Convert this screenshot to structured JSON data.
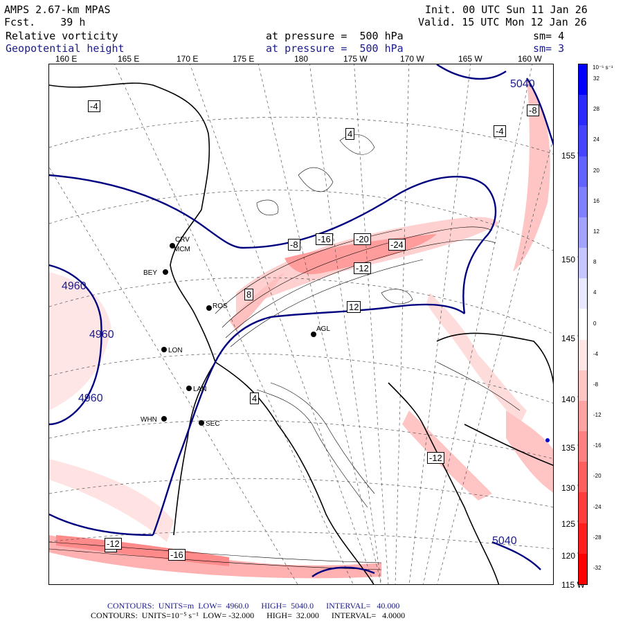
{
  "header": {
    "model": "AMPS 2.67-km MPAS",
    "forecast": "Fcst.    39 h",
    "init": "Init. 00 UTC Sun 11 Jan 26",
    "valid": "Valid. 15 UTC Mon 12 Jan 26",
    "field1": "Relative vorticity",
    "field1_level": "at pressure =  500 hPa",
    "field1_sm": "sm= 4",
    "field2": "Geopotential height",
    "field2_level": "at pressure =  500 hPa",
    "field2_sm": "sm= 3"
  },
  "longitude_labels": [
    "160 E",
    "165 E",
    "170 E",
    "175 E",
    "180",
    "175 W",
    "170 W",
    "165 W",
    "160 W"
  ],
  "latitude_labels": [
    "155 W",
    "150 W",
    "145 W",
    "140 W",
    "135 W",
    "130 W",
    "125 W",
    "120 W",
    "115 W"
  ],
  "stations": [
    "CRV",
    "MCM",
    "ROS",
    "BEY",
    "LON",
    "LAN",
    "WHN",
    "SEC",
    "AGL"
  ],
  "height_contour_labels": [
    "4960",
    "4960",
    "4960",
    "5040",
    "5040"
  ],
  "vorticity_labels": [
    "-4",
    "-8",
    "-12",
    "-16",
    "-20",
    "-24",
    "4",
    "8",
    "12",
    "-4",
    "-8",
    "4"
  ],
  "colorbar": {
    "unit": "10⁻⁵ s⁻¹",
    "ticks": [
      "32",
      "28",
      "24",
      "20",
      "16",
      "12",
      "8",
      "4",
      "0",
      "-4",
      "-8",
      "-12",
      "-16",
      "-20",
      "-24",
      "-28",
      "-32"
    ],
    "colors": [
      "#0000ff",
      "#2a2aff",
      "#4444ff",
      "#6262ff",
      "#8080ff",
      "#a2a2ff",
      "#c6c6ff",
      "#e8e8ff",
      "#ffffff",
      "#ffe6e6",
      "#ffc4c4",
      "#ffa2a2",
      "#ff8080",
      "#ff5e5e",
      "#ff3c3c",
      "#ff1e1e",
      "#ff0000"
    ]
  },
  "footer": {
    "line1": "CONTOURS:  UNITS=m  LOW=  4960.0      HIGH=  5040.0      INTERVAL=   40.000",
    "line2": "CONTOURS:  UNITS=10⁻⁵ s⁻¹  LOW= -32.000      HIGH=  32.000      INTERVAL=   4.0000"
  }
}
